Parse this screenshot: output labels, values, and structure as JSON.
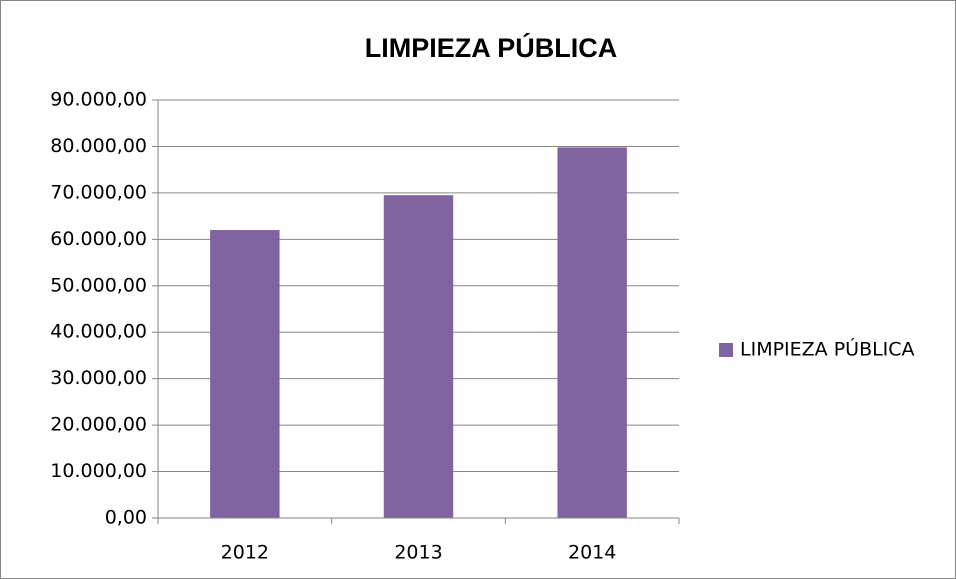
{
  "chart_data": {
    "type": "bar",
    "title": "LIMPIEZA PÚBLICA",
    "categories": [
      "2012",
      "2013",
      "2014"
    ],
    "series": [
      {
        "name": "LIMPIEZA PÚBLICA",
        "color": "#8064a2",
        "values": [
          62000,
          69500,
          79800
        ]
      }
    ],
    "ylim": [
      0,
      90000
    ],
    "yticks": [
      {
        "value": 0,
        "label": "0,00"
      },
      {
        "value": 10000,
        "label": "10.000,00"
      },
      {
        "value": 20000,
        "label": "20.000,00"
      },
      {
        "value": 30000,
        "label": "30.000,00"
      },
      {
        "value": 40000,
        "label": "40.000,00"
      },
      {
        "value": 50000,
        "label": "50.000,00"
      },
      {
        "value": 60000,
        "label": "60.000,00"
      },
      {
        "value": 70000,
        "label": "70.000,00"
      },
      {
        "value": 80000,
        "label": "80.000,00"
      },
      {
        "value": 90000,
        "label": "90.000,00"
      }
    ],
    "grid": true,
    "legend": "right"
  }
}
